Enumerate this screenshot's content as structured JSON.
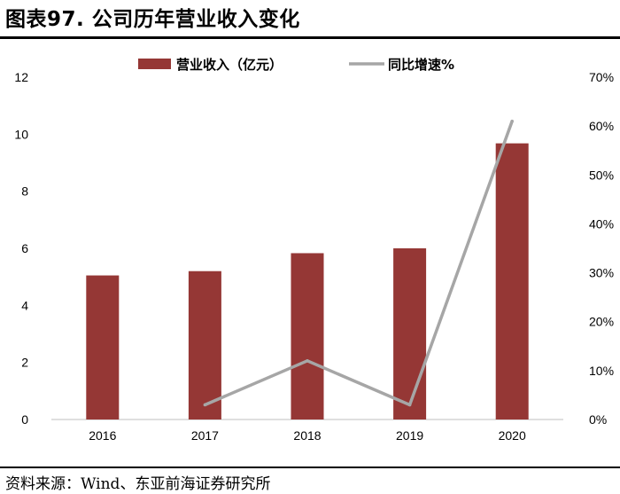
{
  "header": {
    "title": "图表97. 公司历年营业收入变化"
  },
  "footer": {
    "source": "资料来源：Wind、东亚前海证券研究所"
  },
  "colors": {
    "bar": "#953735",
    "line": "#a6a6a6"
  },
  "chart_data": {
    "type": "bar",
    "categories": [
      "2016",
      "2017",
      "2018",
      "2019",
      "2020"
    ],
    "series": [
      {
        "name": "营业收入（亿元）",
        "type": "bar",
        "axis": "left",
        "values": [
          5.05,
          5.2,
          5.83,
          6.0,
          9.68
        ]
      },
      {
        "name": "同比增速%",
        "type": "line",
        "axis": "right",
        "values": [
          null,
          3,
          12,
          3,
          61
        ]
      }
    ],
    "y_left": {
      "min": 0,
      "max": 12,
      "ticks": [
        "0",
        "2",
        "4",
        "6",
        "8",
        "10",
        "12"
      ]
    },
    "y_right": {
      "min": 0,
      "max": 70,
      "ticks": [
        "0%",
        "10%",
        "20%",
        "30%",
        "40%",
        "50%",
        "60%",
        "70%"
      ]
    },
    "legend_position": "top-center",
    "grid": false
  }
}
